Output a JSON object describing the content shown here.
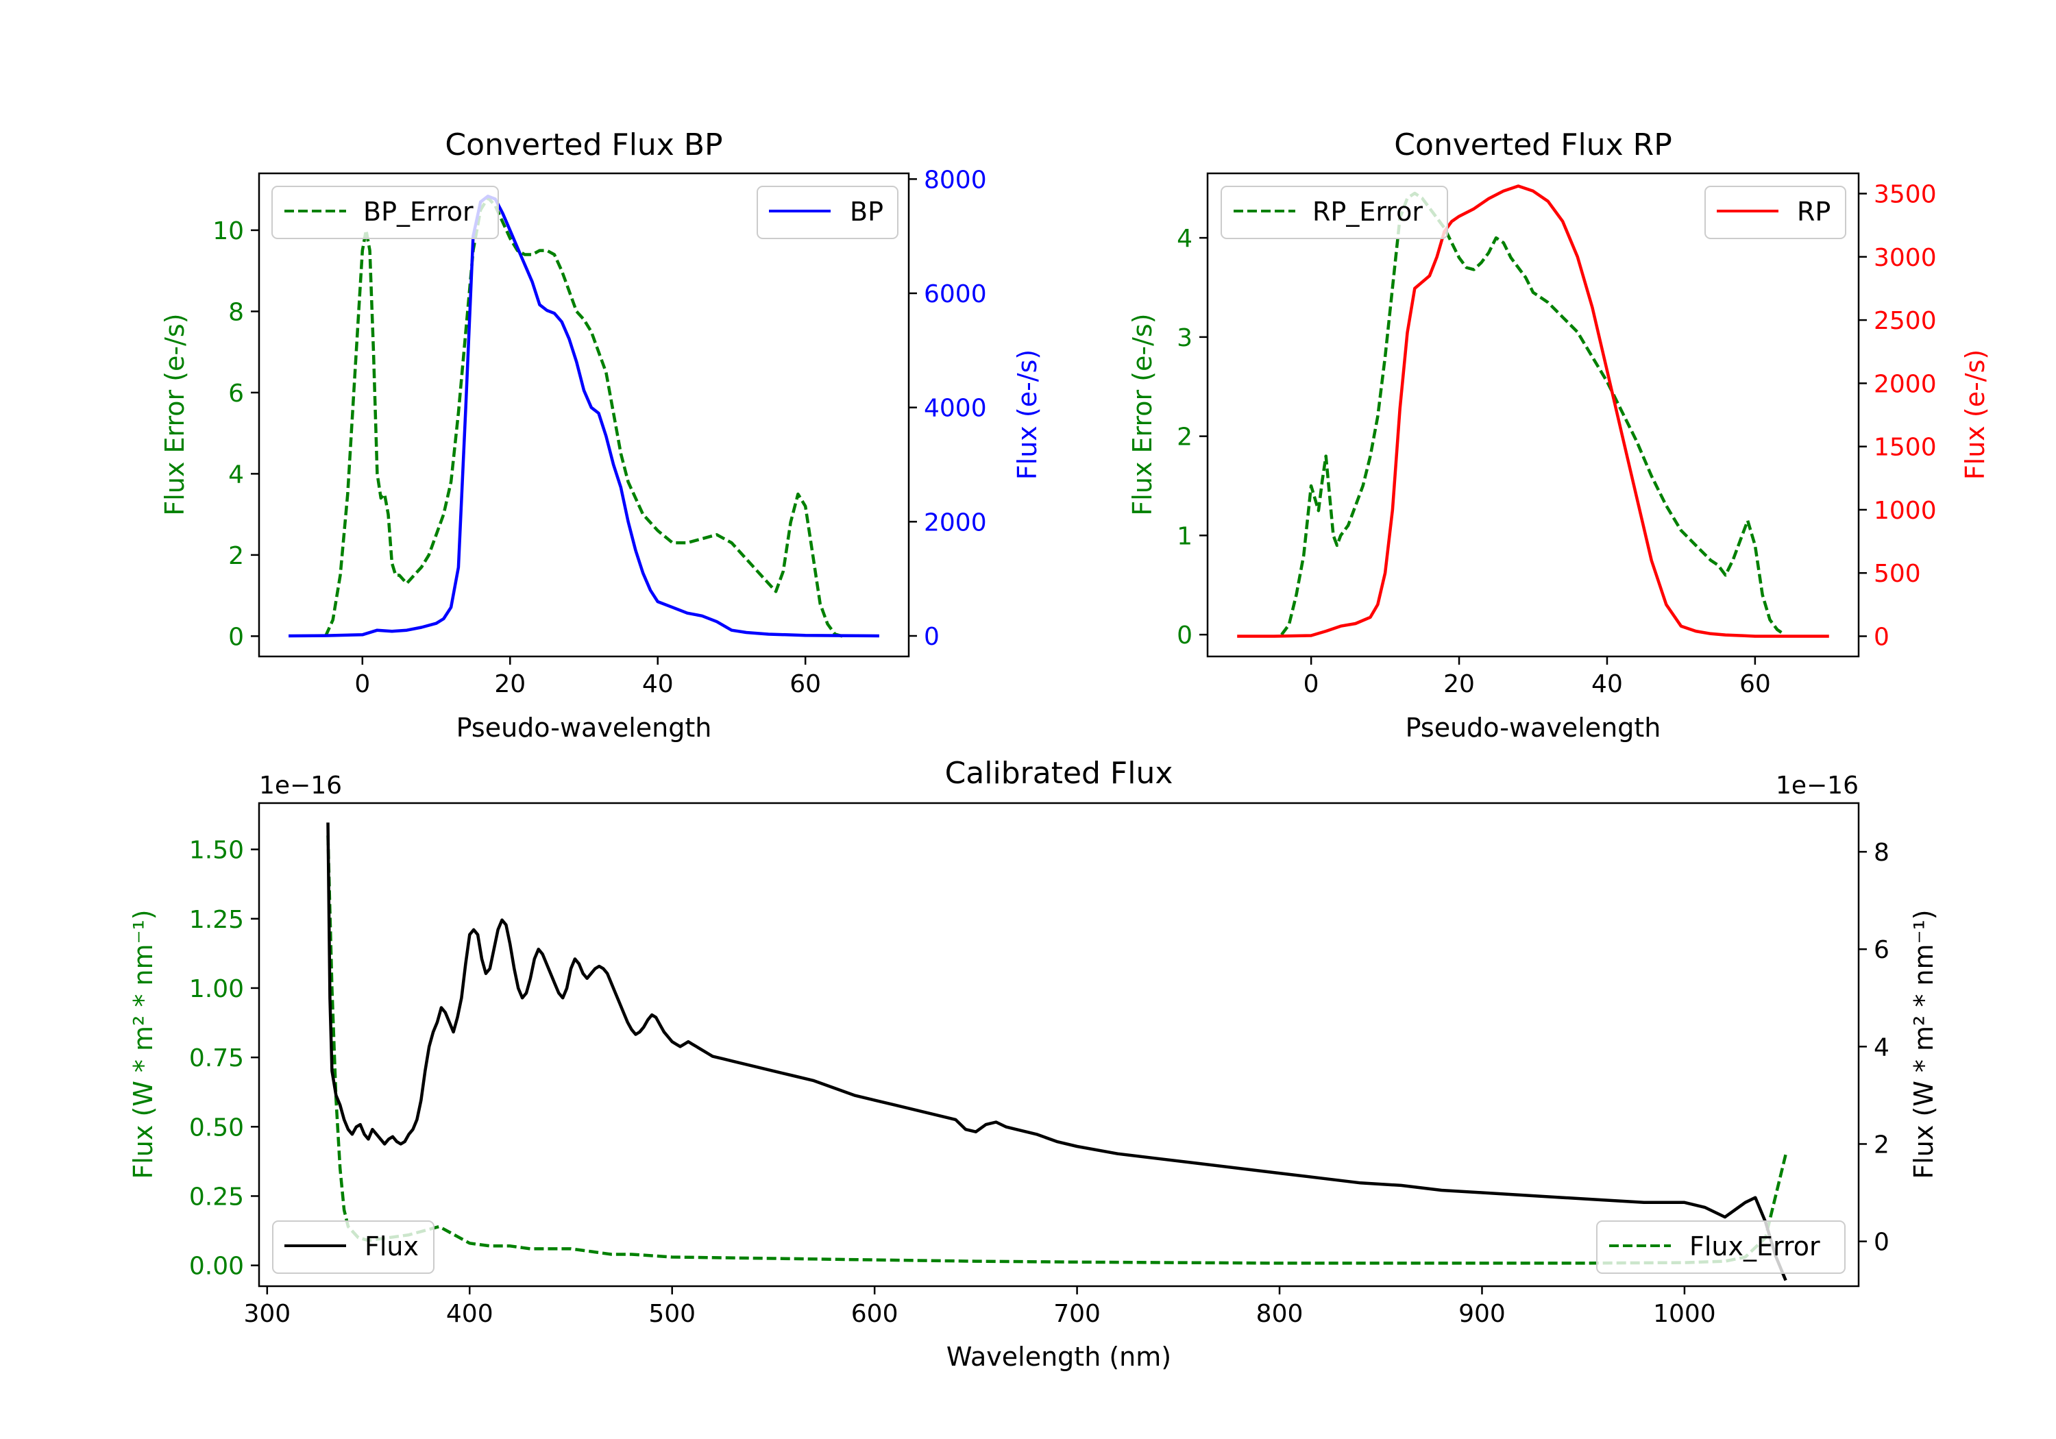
{
  "chart_data": [
    {
      "id": "bp",
      "type": "line",
      "title": "Converted Flux BP",
      "xlabel": "Pseudo-wavelength",
      "ylabel": "Flux Error (e-/s)",
      "y2label": "Flux (e-/s)",
      "xlim": [
        -14,
        74
      ],
      "ylim": [
        -0.5,
        11.4
      ],
      "y2lim": [
        -360,
        8100
      ],
      "xticks": [
        0,
        20,
        40,
        60
      ],
      "yticks": [
        0,
        2,
        4,
        6,
        8,
        10
      ],
      "y2ticks": [
        0,
        2000,
        4000,
        6000,
        8000
      ],
      "colors": {
        "left": "#008000",
        "right": "#0000ff"
      },
      "series": [
        {
          "name": "BP_Error",
          "axis": "left",
          "color": "#008000",
          "dash": true,
          "x": [
            -5,
            -4,
            -3,
            -2,
            -1,
            0,
            0.5,
            1,
            1.5,
            2,
            2.5,
            3,
            3.5,
            4,
            4.5,
            5,
            6,
            7,
            8,
            9,
            10,
            11,
            12,
            13,
            14,
            15,
            16,
            17,
            18,
            19,
            20,
            21,
            22,
            23,
            24,
            25,
            26,
            27,
            28,
            29,
            30,
            31,
            32,
            33,
            34,
            35,
            36,
            38,
            40,
            42,
            44,
            46,
            48,
            50,
            52,
            54,
            56,
            57,
            58,
            59,
            60,
            61,
            62,
            63,
            64,
            65
          ],
          "y": [
            0,
            0.4,
            1.5,
            3.5,
            6.5,
            9.5,
            10,
            9.5,
            7,
            4,
            3.4,
            3.5,
            3,
            1.8,
            1.5,
            1.5,
            1.3,
            1.5,
            1.7,
            2,
            2.5,
            3,
            3.8,
            5.5,
            7.5,
            9.5,
            10.5,
            10.8,
            10.6,
            10.2,
            9.8,
            9.5,
            9.4,
            9.4,
            9.5,
            9.5,
            9.4,
            9,
            8.5,
            8,
            7.8,
            7.5,
            7,
            6.5,
            5.5,
            4.5,
            3.8,
            3,
            2.6,
            2.3,
            2.3,
            2.4,
            2.5,
            2.3,
            1.9,
            1.5,
            1.1,
            1.6,
            2.8,
            3.5,
            3.2,
            2,
            0.8,
            0.3,
            0.05,
            0
          ]
        },
        {
          "name": "BP",
          "axis": "right",
          "color": "#0000ff",
          "dash": false,
          "x": [
            -10,
            -5,
            0,
            2,
            4,
            6,
            8,
            10,
            11,
            12,
            13,
            14,
            15,
            16,
            17,
            18,
            19,
            20,
            21,
            22,
            23,
            24,
            25,
            26,
            27,
            28,
            29,
            30,
            31,
            32,
            33,
            34,
            35,
            36,
            37,
            38,
            39,
            40,
            42,
            44,
            46,
            48,
            50,
            52,
            55,
            60,
            65,
            70
          ],
          "y": [
            0,
            5,
            20,
            100,
            80,
            100,
            150,
            220,
            300,
            500,
            1200,
            4000,
            7000,
            7600,
            7700,
            7650,
            7400,
            7100,
            6800,
            6500,
            6200,
            5800,
            5700,
            5650,
            5500,
            5200,
            4800,
            4300,
            4000,
            3900,
            3500,
            3000,
            2600,
            2000,
            1500,
            1100,
            800,
            600,
            500,
            400,
            350,
            250,
            100,
            60,
            30,
            10,
            5,
            0
          ]
        }
      ],
      "legend": [
        {
          "label": "BP_Error",
          "placement": "upper-left"
        },
        {
          "label": "BP",
          "placement": "upper-right"
        }
      ]
    },
    {
      "id": "rp",
      "type": "line",
      "title": "Converted Flux RP",
      "xlabel": "Pseudo-wavelength",
      "ylabel": "Flux Error (e-/s)",
      "y2label": "Flux (e-/s)",
      "xlim": [
        -14,
        74
      ],
      "ylim": [
        -0.22,
        4.65
      ],
      "y2lim": [
        -160,
        3660
      ],
      "xticks": [
        0,
        20,
        40,
        60
      ],
      "yticks": [
        0,
        1,
        2,
        3,
        4
      ],
      "y2ticks": [
        0,
        500,
        1000,
        1500,
        2000,
        2500,
        3000,
        3500
      ],
      "colors": {
        "left": "#008000",
        "right": "#ff0000"
      },
      "series": [
        {
          "name": "RP_Error",
          "axis": "left",
          "color": "#008000",
          "dash": true,
          "x": [
            -4,
            -3,
            -2,
            -1,
            0,
            1,
            1.5,
            2,
            2.5,
            3,
            3.5,
            4,
            5,
            6,
            7,
            8,
            9,
            10,
            11,
            12,
            13,
            14,
            15,
            16,
            17,
            18,
            19,
            20,
            21,
            22,
            23,
            24,
            25,
            26,
            27,
            28,
            29,
            30,
            32,
            34,
            36,
            38,
            40,
            42,
            44,
            46,
            48,
            50,
            52,
            54,
            55,
            56,
            57,
            58,
            59,
            60,
            61,
            62,
            63,
            64
          ],
          "y": [
            0,
            0.1,
            0.4,
            0.8,
            1.5,
            1.25,
            1.55,
            1.8,
            1.4,
            1,
            0.9,
            1,
            1.1,
            1.3,
            1.5,
            1.8,
            2.2,
            2.8,
            3.5,
            4.2,
            4.4,
            4.45,
            4.4,
            4.3,
            4.2,
            4.1,
            3.95,
            3.8,
            3.7,
            3.68,
            3.75,
            3.85,
            4,
            3.95,
            3.8,
            3.7,
            3.6,
            3.45,
            3.35,
            3.2,
            3.05,
            2.8,
            2.55,
            2.25,
            1.95,
            1.6,
            1.3,
            1.05,
            0.9,
            0.75,
            0.7,
            0.6,
            0.75,
            0.95,
            1.15,
            0.9,
            0.4,
            0.15,
            0.05,
            0
          ]
        },
        {
          "name": "RP",
          "axis": "right",
          "color": "#ff0000",
          "dash": false,
          "x": [
            -10,
            -5,
            0,
            2,
            4,
            6,
            8,
            9,
            10,
            11,
            12,
            13,
            14,
            15,
            16,
            17,
            18,
            19,
            20,
            22,
            24,
            26,
            28,
            30,
            32,
            34,
            36,
            38,
            40,
            42,
            44,
            46,
            48,
            50,
            52,
            54,
            56,
            58,
            60,
            65,
            70
          ],
          "y": [
            0,
            0,
            5,
            40,
            80,
            100,
            150,
            250,
            500,
            1000,
            1800,
            2400,
            2750,
            2800,
            2850,
            3000,
            3200,
            3280,
            3320,
            3380,
            3460,
            3520,
            3560,
            3520,
            3440,
            3280,
            3000,
            2600,
            2100,
            1600,
            1100,
            600,
            250,
            80,
            40,
            20,
            10,
            5,
            0,
            0,
            0
          ]
        }
      ],
      "legend": [
        {
          "label": "RP_Error",
          "placement": "upper-left"
        },
        {
          "label": "RP",
          "placement": "upper-right"
        }
      ]
    },
    {
      "id": "cal",
      "type": "line",
      "title": "Calibrated Flux",
      "xlabel": "Wavelength (nm)",
      "ylabel": "Flux (W * m² * nm⁻¹)",
      "y2label": "Flux (W * m² * nm⁻¹)",
      "offset_text_left": "1e−16",
      "offset_text_right": "1e−16",
      "xlim": [
        296,
        1086
      ],
      "ylim": [
        -0.075,
        1.667
      ],
      "y2lim": [
        -0.92,
        9.0
      ],
      "xticks": [
        300,
        400,
        500,
        600,
        700,
        800,
        900,
        1000
      ],
      "yticks": [
        0.0,
        0.25,
        0.5,
        0.75,
        1.0,
        1.25,
        1.5
      ],
      "ytick_labels": [
        "0.00",
        "0.25",
        "0.50",
        "0.75",
        "1.00",
        "1.25",
        "1.50"
      ],
      "y2ticks": [
        0,
        2,
        4,
        6,
        8
      ],
      "colors": {
        "left": "#008000",
        "right": "#000000"
      },
      "series": [
        {
          "name": "Flux_Error",
          "axis": "left",
          "color": "#008000",
          "dash": true,
          "x": [
            330,
            332,
            334,
            336,
            338,
            340,
            345,
            350,
            360,
            370,
            380,
            385,
            390,
            395,
            400,
            410,
            420,
            430,
            440,
            450,
            460,
            470,
            480,
            490,
            500,
            550,
            600,
            650,
            700,
            750,
            800,
            850,
            900,
            950,
            1000,
            1020,
            1030,
            1040,
            1050
          ],
          "y": [
            1.55,
            1.0,
            0.6,
            0.35,
            0.2,
            0.14,
            0.1,
            0.09,
            0.1,
            0.11,
            0.13,
            0.14,
            0.12,
            0.1,
            0.08,
            0.07,
            0.07,
            0.06,
            0.06,
            0.06,
            0.05,
            0.04,
            0.04,
            0.035,
            0.03,
            0.025,
            0.02,
            0.015,
            0.012,
            0.01,
            0.008,
            0.008,
            0.008,
            0.008,
            0.01,
            0.015,
            0.03,
            0.1,
            0.4
          ]
        },
        {
          "name": "Flux",
          "axis": "right",
          "color": "#000000",
          "dash": false,
          "x": [
            330,
            331,
            332,
            334,
            336,
            338,
            340,
            342,
            344,
            346,
            348,
            350,
            352,
            354,
            356,
            358,
            360,
            362,
            364,
            366,
            368,
            370,
            372,
            374,
            376,
            378,
            380,
            382,
            384,
            386,
            388,
            390,
            392,
            394,
            396,
            398,
            400,
            402,
            404,
            406,
            408,
            410,
            412,
            414,
            416,
            418,
            420,
            422,
            424,
            426,
            428,
            430,
            432,
            434,
            436,
            438,
            440,
            442,
            444,
            446,
            448,
            450,
            452,
            454,
            456,
            458,
            460,
            462,
            464,
            466,
            468,
            470,
            472,
            474,
            476,
            478,
            480,
            482,
            484,
            486,
            488,
            490,
            492,
            494,
            496,
            498,
            500,
            502,
            504,
            506,
            508,
            510,
            512,
            514,
            516,
            518,
            520,
            525,
            530,
            540,
            550,
            560,
            570,
            580,
            590,
            600,
            610,
            620,
            630,
            640,
            645,
            650,
            655,
            660,
            665,
            670,
            680,
            690,
            700,
            720,
            740,
            760,
            780,
            800,
            820,
            840,
            860,
            880,
            900,
            920,
            940,
            960,
            980,
            1000,
            1010,
            1020,
            1030,
            1035,
            1040,
            1045,
            1050
          ],
          "y": [
            8.6,
            5,
            3.5,
            3,
            2.8,
            2.5,
            2.3,
            2.2,
            2.35,
            2.4,
            2.2,
            2.1,
            2.3,
            2.2,
            2.1,
            2.0,
            2.1,
            2.15,
            2.05,
            2.0,
            2.05,
            2.2,
            2.3,
            2.5,
            2.9,
            3.5,
            4.0,
            4.3,
            4.5,
            4.8,
            4.7,
            4.5,
            4.3,
            4.6,
            5.0,
            5.7,
            6.3,
            6.4,
            6.3,
            5.8,
            5.5,
            5.6,
            6.0,
            6.4,
            6.6,
            6.5,
            6.1,
            5.6,
            5.2,
            5.0,
            5.1,
            5.4,
            5.8,
            6.0,
            5.9,
            5.7,
            5.5,
            5.3,
            5.1,
            5.0,
            5.2,
            5.6,
            5.8,
            5.7,
            5.5,
            5.4,
            5.5,
            5.6,
            5.65,
            5.6,
            5.5,
            5.3,
            5.1,
            4.9,
            4.7,
            4.5,
            4.35,
            4.25,
            4.3,
            4.4,
            4.55,
            4.65,
            4.6,
            4.45,
            4.3,
            4.2,
            4.1,
            4.05,
            4.0,
            4.05,
            4.1,
            4.05,
            4.0,
            3.95,
            3.9,
            3.85,
            3.8,
            3.75,
            3.7,
            3.6,
            3.5,
            3.4,
            3.3,
            3.15,
            3.0,
            2.9,
            2.8,
            2.7,
            2.6,
            2.5,
            2.3,
            2.25,
            2.4,
            2.45,
            2.35,
            2.3,
            2.2,
            2.05,
            1.95,
            1.8,
            1.7,
            1.6,
            1.5,
            1.4,
            1.3,
            1.2,
            1.15,
            1.05,
            1.0,
            0.95,
            0.9,
            0.85,
            0.8,
            0.8,
            0.7,
            0.5,
            0.8,
            0.9,
            0.4,
            -0.3,
            -0.8
          ]
        }
      ],
      "legend": [
        {
          "label": "Flux",
          "placement": "lower-left"
        },
        {
          "label": "Flux_Error",
          "placement": "lower-right"
        }
      ]
    }
  ]
}
